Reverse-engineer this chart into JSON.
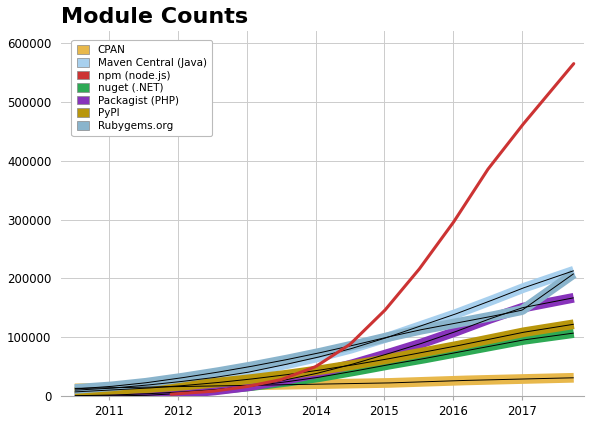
{
  "title": "Module Counts",
  "title_fontsize": 16,
  "title_fontweight": "bold",
  "xlim": [
    2010.3,
    2017.9
  ],
  "ylim": [
    0,
    620000
  ],
  "yticks": [
    0,
    100000,
    200000,
    300000,
    400000,
    500000,
    600000
  ],
  "ytick_labels": [
    "0",
    "100000",
    "200000",
    "300000",
    "400000",
    "500000",
    "600000"
  ],
  "xtick_labels": [
    "2011",
    "2012",
    "2013",
    "2014",
    "2015",
    "2016",
    "2017"
  ],
  "xtick_positions": [
    2011,
    2012,
    2013,
    2014,
    2015,
    2016,
    2017
  ],
  "background_color": "#ffffff",
  "grid_color": "#cccccc",
  "series": {
    "CPAN": {
      "color": "#e8b84b",
      "band": true,
      "data": [
        [
          2010.5,
          13000
        ],
        [
          2011.0,
          14000
        ],
        [
          2011.5,
          15000
        ],
        [
          2012.0,
          16000
        ],
        [
          2012.5,
          17000
        ],
        [
          2013.0,
          18000
        ],
        [
          2013.5,
          19000
        ],
        [
          2014.0,
          20000
        ],
        [
          2014.5,
          21000
        ],
        [
          2015.0,
          22000
        ],
        [
          2015.5,
          24000
        ],
        [
          2016.0,
          26000
        ],
        [
          2016.5,
          27500
        ],
        [
          2017.0,
          29000
        ],
        [
          2017.75,
          31000
        ]
      ]
    },
    "Maven Central (Java)": {
      "color": "#a8d0ee",
      "band": true,
      "data": [
        [
          2010.5,
          10000
        ],
        [
          2011.0,
          13000
        ],
        [
          2011.5,
          18000
        ],
        [
          2012.0,
          24000
        ],
        [
          2012.5,
          31000
        ],
        [
          2013.0,
          40000
        ],
        [
          2013.5,
          52000
        ],
        [
          2014.0,
          65000
        ],
        [
          2014.5,
          80000
        ],
        [
          2015.0,
          98000
        ],
        [
          2015.5,
          118000
        ],
        [
          2016.0,
          138000
        ],
        [
          2016.5,
          160000
        ],
        [
          2017.0,
          183000
        ],
        [
          2017.75,
          213000
        ]
      ]
    },
    "npm (node.js)": {
      "color": "#cc3333",
      "band": false,
      "data": [
        [
          2011.9,
          3000
        ],
        [
          2012.0,
          4000
        ],
        [
          2012.5,
          8000
        ],
        [
          2013.0,
          16000
        ],
        [
          2013.5,
          28000
        ],
        [
          2014.0,
          50000
        ],
        [
          2014.5,
          88000
        ],
        [
          2015.0,
          145000
        ],
        [
          2015.5,
          215000
        ],
        [
          2016.0,
          295000
        ],
        [
          2016.5,
          385000
        ],
        [
          2017.0,
          460000
        ],
        [
          2017.75,
          565000
        ]
      ]
    },
    "nuget (.NET)": {
      "color": "#2eaa55",
      "band": true,
      "data": [
        [
          2010.5,
          500
        ],
        [
          2011.0,
          1500
        ],
        [
          2011.5,
          3500
        ],
        [
          2012.0,
          6500
        ],
        [
          2012.5,
          10500
        ],
        [
          2013.0,
          16000
        ],
        [
          2013.5,
          23000
        ],
        [
          2014.0,
          31000
        ],
        [
          2014.5,
          41000
        ],
        [
          2015.0,
          52000
        ],
        [
          2015.5,
          62000
        ],
        [
          2016.0,
          73000
        ],
        [
          2016.5,
          84000
        ],
        [
          2017.0,
          95000
        ],
        [
          2017.75,
          107000
        ]
      ]
    },
    "Packagist (PHP)": {
      "color": "#8833bb",
      "band": true,
      "data": [
        [
          2010.5,
          0
        ],
        [
          2011.0,
          200
        ],
        [
          2011.5,
          1000
        ],
        [
          2012.0,
          4000
        ],
        [
          2012.5,
          9000
        ],
        [
          2013.0,
          16000
        ],
        [
          2013.5,
          26000
        ],
        [
          2014.0,
          38000
        ],
        [
          2014.5,
          53000
        ],
        [
          2015.0,
          70000
        ],
        [
          2015.5,
          88000
        ],
        [
          2016.0,
          108000
        ],
        [
          2016.5,
          130000
        ],
        [
          2017.0,
          150000
        ],
        [
          2017.75,
          167000
        ]
      ]
    },
    "PyPI": {
      "color": "#b8960c",
      "band": true,
      "data": [
        [
          2010.5,
          7000
        ],
        [
          2011.0,
          10000
        ],
        [
          2011.5,
          13000
        ],
        [
          2012.0,
          17000
        ],
        [
          2012.5,
          22000
        ],
        [
          2013.0,
          28000
        ],
        [
          2013.5,
          35000
        ],
        [
          2014.0,
          43000
        ],
        [
          2014.5,
          52000
        ],
        [
          2015.0,
          62000
        ],
        [
          2015.5,
          73000
        ],
        [
          2016.0,
          84000
        ],
        [
          2016.5,
          96000
        ],
        [
          2017.0,
          108000
        ],
        [
          2017.75,
          122000
        ]
      ]
    },
    "Rubygems.org": {
      "color": "#8ab4cc",
      "band": true,
      "data": [
        [
          2010.5,
          12000
        ],
        [
          2011.0,
          16000
        ],
        [
          2011.5,
          22000
        ],
        [
          2012.0,
          30000
        ],
        [
          2012.5,
          39000
        ],
        [
          2013.0,
          49000
        ],
        [
          2013.5,
          60000
        ],
        [
          2014.0,
          72000
        ],
        [
          2014.5,
          85000
        ],
        [
          2015.0,
          99000
        ],
        [
          2015.5,
          112000
        ],
        [
          2016.0,
          123000
        ],
        [
          2016.5,
          134000
        ],
        [
          2017.0,
          146000
        ],
        [
          2017.75,
          208000
        ]
      ]
    }
  }
}
